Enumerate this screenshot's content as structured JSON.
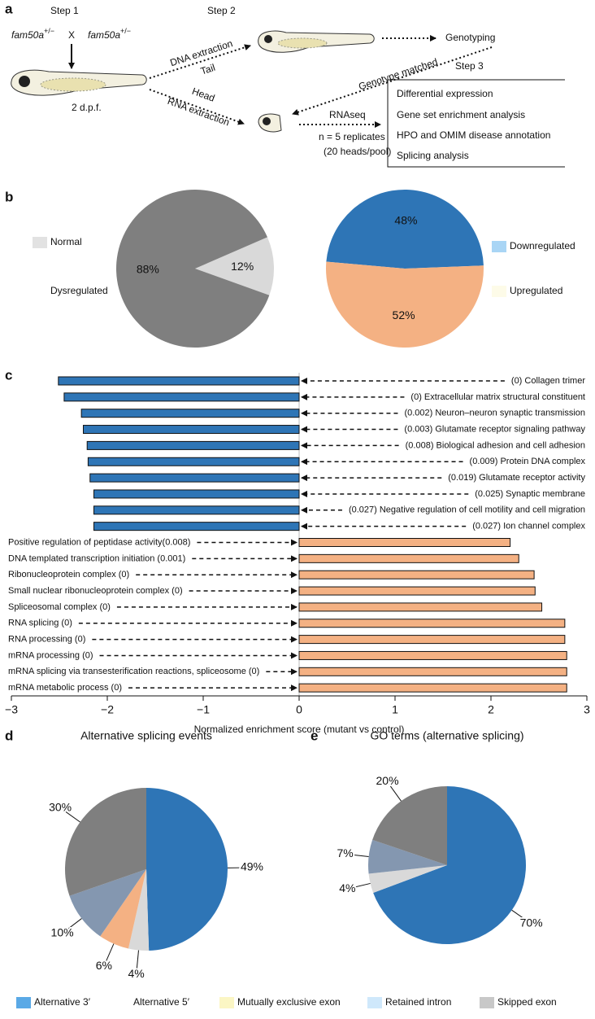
{
  "panel_labels": [
    "a",
    "b",
    "c",
    "d",
    "e"
  ],
  "diagram": {
    "step1": "Step 1",
    "step2": "Step 2",
    "step3": "Step 3",
    "gene": "fam50a",
    "genotype": "+/−",
    "cross": "X",
    "age": "2 d.p.f.",
    "dna": "DNA extraction",
    "tail": "Tail",
    "head": "Head",
    "rna": "RNA extraction",
    "genotyping": "Genotyping",
    "matched": "Genotype matched",
    "rnaseq": "RNAseq",
    "replicates": "n = 5 replicates",
    "pool": "(20 heads/pool)",
    "analyses": [
      "Differential expression",
      "Gene set enrichment analysis",
      "HPO and OMIM disease annotation",
      "Splicing analysis"
    ]
  },
  "chart_data": [
    {
      "type": "pie",
      "categories": [
        "Normal",
        "Dysregulated"
      ],
      "values": [
        12,
        88
      ],
      "value_labels": [
        "12%",
        "88%"
      ],
      "colors": [
        "#d9d9d9",
        "#7f7f7f"
      ],
      "legend_colors": [
        "#e2e2e2",
        "#ffffff"
      ]
    },
    {
      "type": "pie",
      "categories": [
        "Downregulated",
        "Upregulated"
      ],
      "values": [
        48,
        52
      ],
      "value_labels": [
        "48%",
        "52%"
      ],
      "colors": [
        "#2e75b6",
        "#f4b183"
      ],
      "legend_colors": [
        "#a9d5f5",
        "#fdfbe8"
      ]
    },
    {
      "type": "bar",
      "orientation": "horizontal",
      "categories": [
        "(0) Collagen trimer",
        "(0) Extracellular matrix structural constituent",
        "(0.002) Neuron–neuron synaptic transmission",
        "(0.003) Glutamate receptor signaling pathway",
        "(0.008) Biological adhesion and cell adhesion",
        "(0.009) Protein DNA complex",
        "(0.019) Glutamate receptor activity",
        "(0.025) Synaptic membrane",
        "(0.027) Negative regulation of cell motility and cell migration",
        "(0.027) Ion channel complex",
        "Positive regulation of peptidase activity(0.008)",
        "DNA templated transcription initiation (0.001)",
        "Ribonucleoprotein complex (0)",
        "Small nuclear ribonucleoprotein complex (0)",
        "Spliceosomal complex (0)",
        "RNA splicing (0)",
        "RNA processing (0)",
        "mRNA processing (0)",
        "mRNA splicing via transesterification reactions, spliceosome (0)",
        "mRNA metabolic process (0)"
      ],
      "values": [
        -2.51,
        -2.45,
        -2.27,
        -2.25,
        -2.21,
        -2.2,
        -2.18,
        -2.14,
        -2.14,
        -2.14,
        2.2,
        2.29,
        2.45,
        2.46,
        2.53,
        2.77,
        2.77,
        2.79,
        2.79,
        2.79
      ],
      "negative_color": "#2e75b6",
      "positive_color": "#f4b183",
      "xlabel": "Normalized enrichment score (mutant vs control)",
      "xlim": [
        -3,
        3
      ],
      "xticks": [
        {
          "value": -3,
          "label": "−3"
        },
        {
          "value": -2,
          "label": "−2"
        },
        {
          "value": -1,
          "label": "−1"
        },
        0,
        1,
        2,
        3
      ]
    },
    {
      "type": "pie",
      "title": "Alternative splicing events",
      "categories": [
        "Alternative 3′",
        "Alternative 5′",
        "Mutually exclusive exon",
        "Retained intron",
        "Skipped exon"
      ],
      "values": [
        49,
        4,
        6,
        10,
        30
      ],
      "value_labels": [
        "49%",
        "4%",
        "6%",
        "10%",
        "30%"
      ],
      "colors": [
        "#2e75b6",
        "#d9d9d9",
        "#f4b183",
        "#8497b0",
        "#7f7f7f"
      ],
      "legend_colors": [
        "#5aa9e6",
        "#ffffff",
        "#fbf6c4",
        "#cfe8fb",
        "#c8c8c8"
      ]
    },
    {
      "type": "pie",
      "title": "GO terms (alternative splicing)",
      "values": [
        70,
        4,
        7,
        20
      ],
      "value_labels": [
        "70%",
        "4%",
        "7%",
        "20%"
      ],
      "colors": [
        "#2e75b6",
        "#d9d9d9",
        "#8497b0",
        "#7f7f7f"
      ]
    }
  ]
}
